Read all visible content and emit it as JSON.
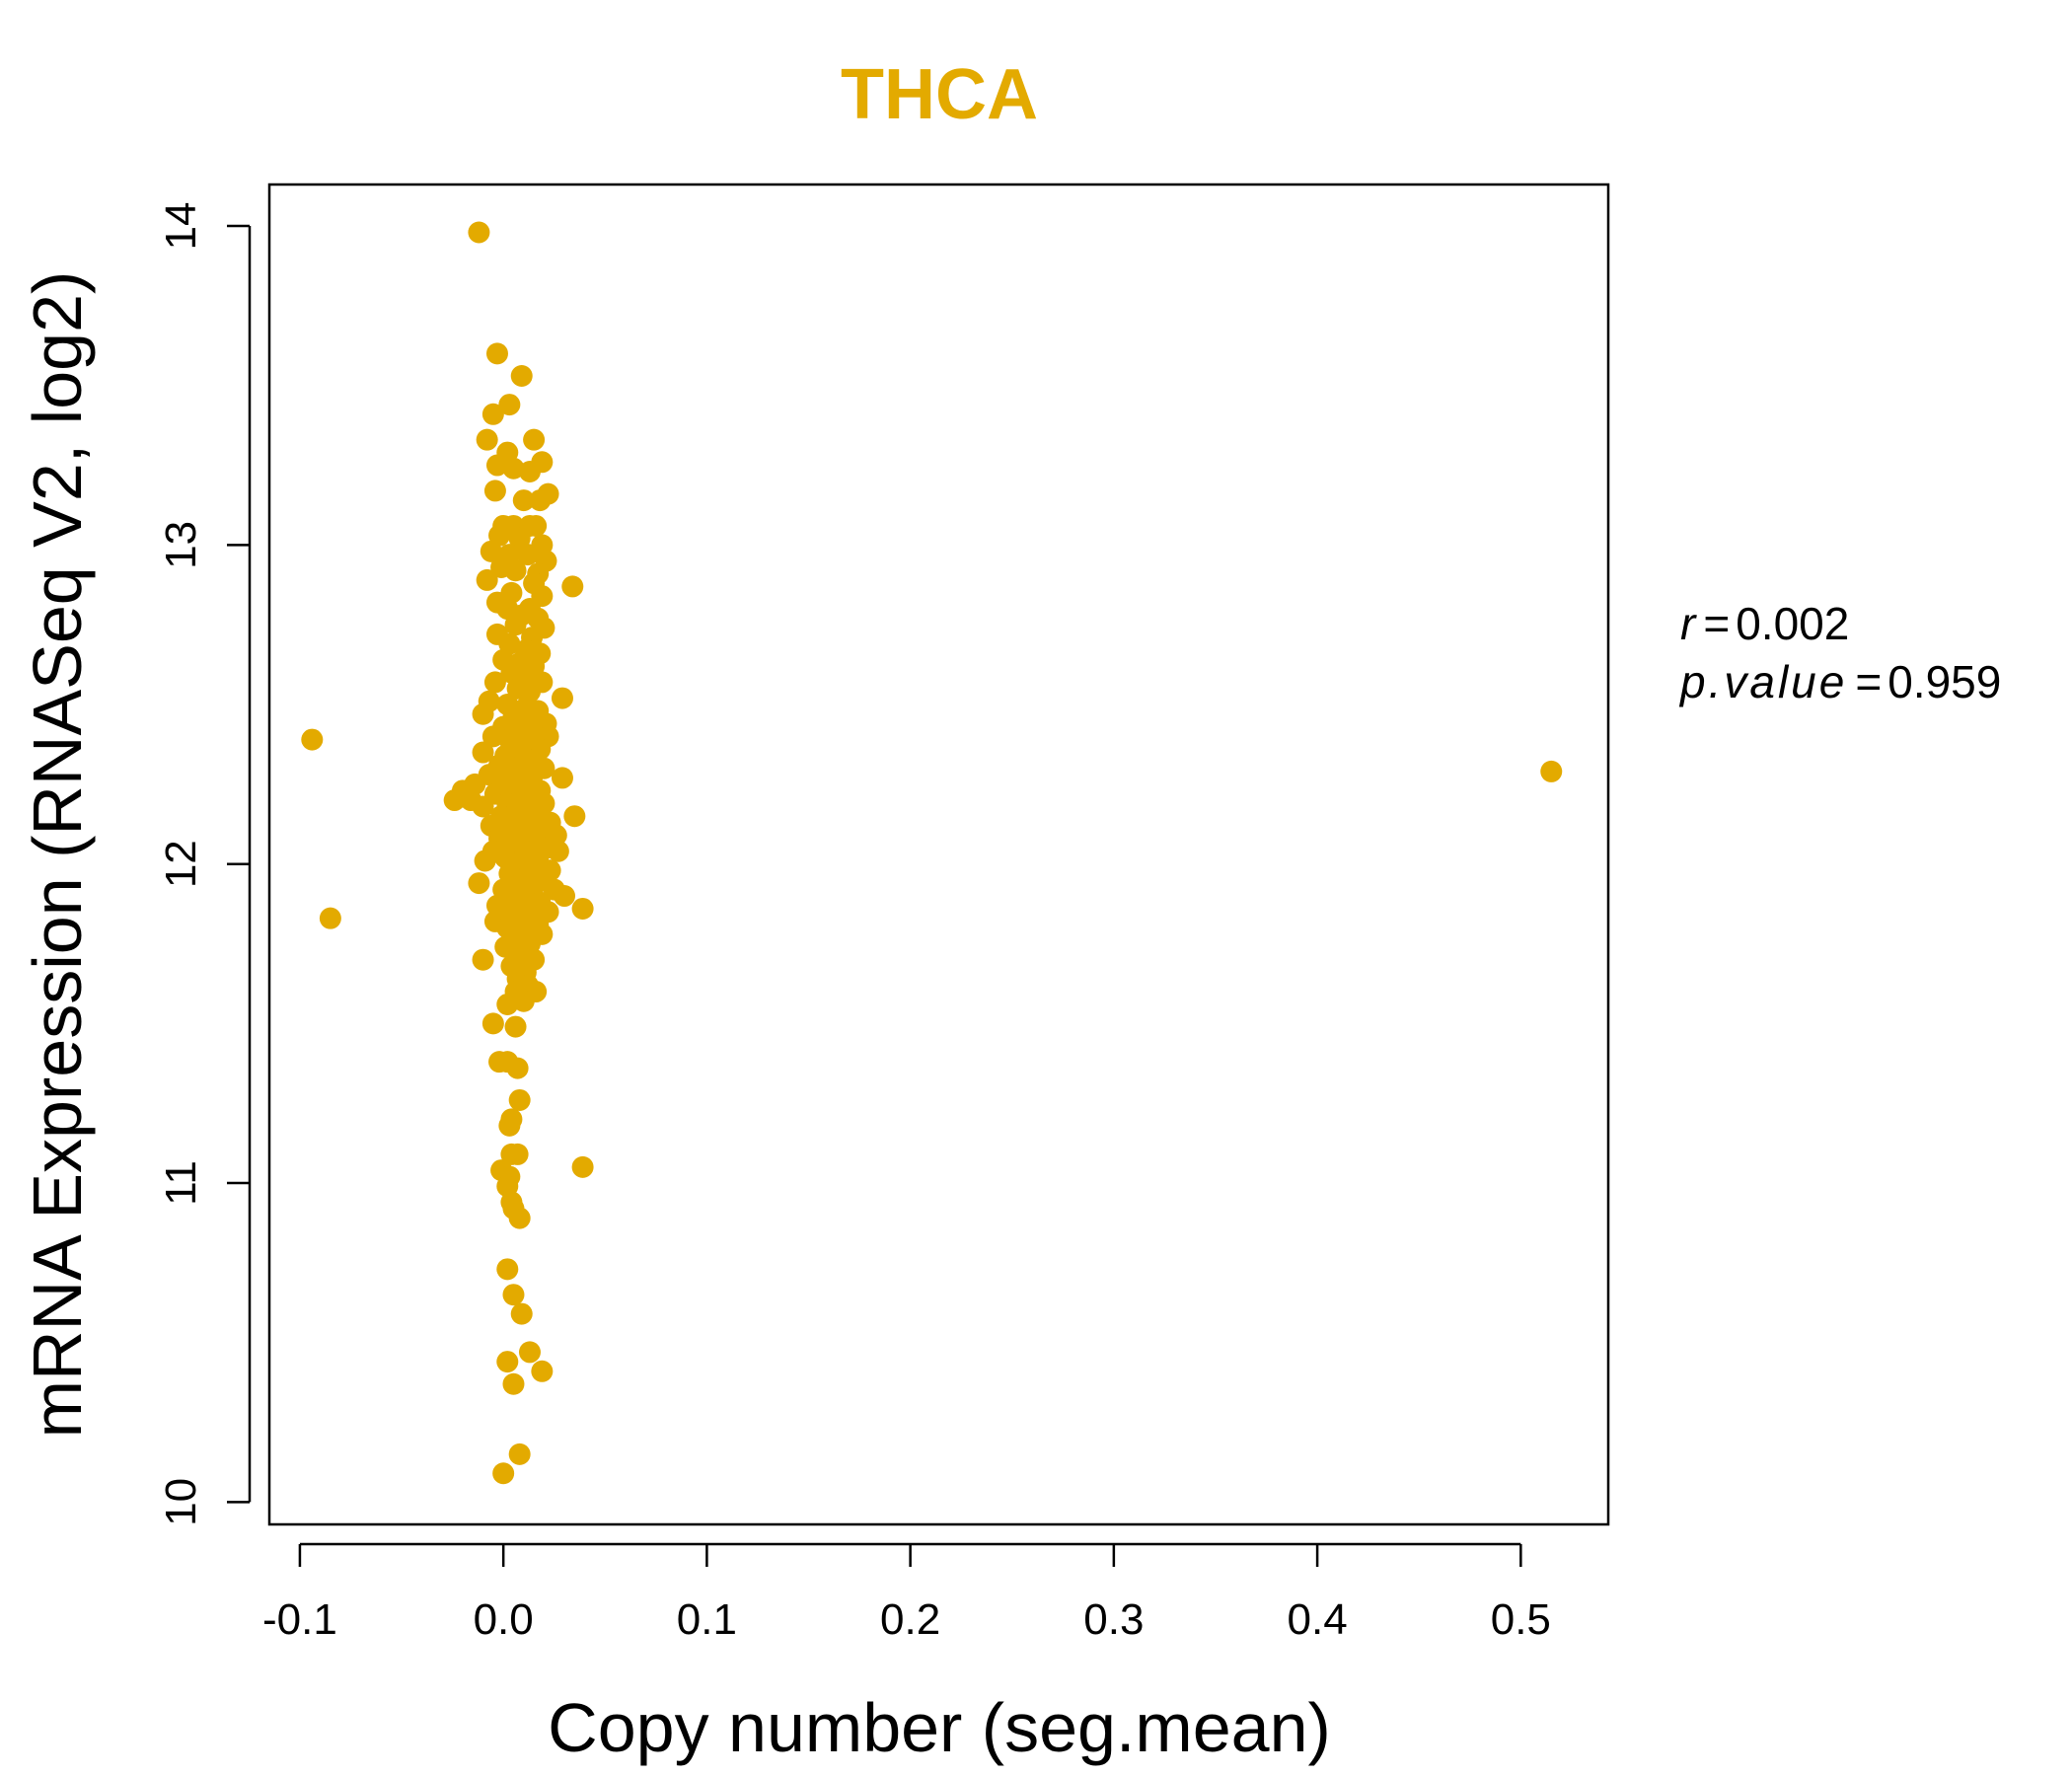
{
  "chart_data": {
    "type": "scatter",
    "title": "THCA",
    "xlabel": "Copy number (seg.mean)",
    "ylabel": "mRNA Expression (RNASeq V2, log2)",
    "xlim": [
      -0.115,
      0.543
    ],
    "ylim": [
      9.93,
      14.13
    ],
    "xticks": [
      "-0.1",
      "0.0",
      "0.1",
      "0.2",
      "0.3",
      "0.4",
      "0.5"
    ],
    "yticks": [
      "10",
      "11",
      "12",
      "13",
      "14"
    ],
    "color": "#E3AA00",
    "grid": false,
    "legend": "none",
    "stats": {
      "r_label": "r",
      "r_value": "0.002",
      "p_label": "p.value",
      "p_value": "0.959"
    },
    "points": [
      [
        -0.012,
        13.98
      ],
      [
        -0.003,
        13.6
      ],
      [
        0.009,
        13.53
      ],
      [
        0.003,
        13.44
      ],
      [
        -0.005,
        13.41
      ],
      [
        -0.008,
        13.33
      ],
      [
        0.015,
        13.33
      ],
      [
        0.002,
        13.29
      ],
      [
        -0.003,
        13.25
      ],
      [
        0.019,
        13.26
      ],
      [
        0.005,
        13.24
      ],
      [
        0.013,
        13.23
      ],
      [
        -0.004,
        13.17
      ],
      [
        0.022,
        13.16
      ],
      [
        0.01,
        13.14
      ],
      [
        0.018,
        13.14
      ],
      [
        0.0,
        13.06
      ],
      [
        0.005,
        13.06
      ],
      [
        0.013,
        13.06
      ],
      [
        0.016,
        13.06
      ],
      [
        -0.002,
        13.03
      ],
      [
        0.008,
        13.02
      ],
      [
        0.019,
        13.0
      ],
      [
        -0.006,
        12.98
      ],
      [
        0.003,
        12.97
      ],
      [
        0.012,
        12.97
      ],
      [
        0.021,
        12.95
      ],
      [
        -0.001,
        12.93
      ],
      [
        0.006,
        12.92
      ],
      [
        0.017,
        12.91
      ],
      [
        -0.008,
        12.89
      ],
      [
        0.015,
        12.88
      ],
      [
        0.034,
        12.87
      ],
      [
        0.004,
        12.85
      ],
      [
        0.019,
        12.84
      ],
      [
        -0.003,
        12.82
      ],
      [
        0.002,
        12.8
      ],
      [
        0.013,
        12.8
      ],
      [
        0.009,
        12.78
      ],
      [
        0.017,
        12.77
      ],
      [
        0.006,
        12.75
      ],
      [
        0.02,
        12.74
      ],
      [
        -0.003,
        12.72
      ],
      [
        0.014,
        12.71
      ],
      [
        0.003,
        12.69
      ],
      [
        0.011,
        12.67
      ],
      [
        0.018,
        12.66
      ],
      [
        0.0,
        12.64
      ],
      [
        0.008,
        12.63
      ],
      [
        0.015,
        12.62
      ],
      [
        0.004,
        12.6
      ],
      [
        0.01,
        12.58
      ],
      [
        -0.004,
        12.57
      ],
      [
        0.019,
        12.57
      ],
      [
        0.007,
        12.55
      ],
      [
        0.013,
        12.54
      ],
      [
        0.029,
        12.52
      ],
      [
        -0.007,
        12.51
      ],
      [
        0.002,
        12.5
      ],
      [
        0.011,
        12.49
      ],
      [
        0.017,
        12.48
      ],
      [
        -0.01,
        12.47
      ],
      [
        0.005,
        12.46
      ],
      [
        0.014,
        12.45
      ],
      [
        0.021,
        12.44
      ],
      [
        0.0,
        12.43
      ],
      [
        0.009,
        12.42
      ],
      [
        0.016,
        12.41
      ],
      [
        -0.005,
        12.4
      ],
      [
        0.003,
        12.39
      ],
      [
        0.012,
        12.38
      ],
      [
        0.022,
        12.4
      ],
      [
        -0.094,
        12.39
      ],
      [
        0.007,
        12.37
      ],
      [
        0.018,
        12.36
      ],
      [
        -0.01,
        12.35
      ],
      [
        0.001,
        12.34
      ],
      [
        0.011,
        12.33
      ],
      [
        0.015,
        12.32
      ],
      [
        -0.002,
        12.31
      ],
      [
        0.006,
        12.3
      ],
      [
        0.02,
        12.3
      ],
      [
        0.009,
        12.29
      ],
      [
        0.515,
        12.29
      ],
      [
        -0.007,
        12.28
      ],
      [
        0.004,
        12.27
      ],
      [
        0.014,
        12.27
      ],
      [
        0.029,
        12.27
      ],
      [
        -0.014,
        12.25
      ],
      [
        0.001,
        12.25
      ],
      [
        0.01,
        12.24
      ],
      [
        0.018,
        12.23
      ],
      [
        -0.02,
        12.23
      ],
      [
        -0.004,
        12.22
      ],
      [
        0.007,
        12.22
      ],
      [
        0.013,
        12.21
      ],
      [
        -0.024,
        12.2
      ],
      [
        -0.016,
        12.2
      ],
      [
        0.002,
        12.19
      ],
      [
        0.02,
        12.19
      ],
      [
        -0.01,
        12.18
      ],
      [
        0.009,
        12.17
      ],
      [
        0.016,
        12.16
      ],
      [
        -0.001,
        12.15
      ],
      [
        0.005,
        12.14
      ],
      [
        0.035,
        12.15
      ],
      [
        0.012,
        12.13
      ],
      [
        0.023,
        12.13
      ],
      [
        -0.006,
        12.12
      ],
      [
        0.003,
        12.11
      ],
      [
        0.018,
        12.1
      ],
      [
        0.008,
        12.09
      ],
      [
        0.026,
        12.09
      ],
      [
        -0.002,
        12.08
      ],
      [
        0.014,
        12.07
      ],
      [
        0.005,
        12.06
      ],
      [
        0.021,
        12.05
      ],
      [
        -0.005,
        12.04
      ],
      [
        0.011,
        12.04
      ],
      [
        0.027,
        12.04
      ],
      [
        0.001,
        12.02
      ],
      [
        0.017,
        12.02
      ],
      [
        -0.009,
        12.01
      ],
      [
        0.007,
        12.0
      ],
      [
        0.013,
        11.99
      ],
      [
        0.023,
        11.98
      ],
      [
        0.003,
        11.97
      ],
      [
        0.019,
        11.96
      ],
      [
        -0.012,
        11.94
      ],
      [
        0.009,
        11.94
      ],
      [
        0.015,
        11.93
      ],
      [
        0.0,
        11.92
      ],
      [
        0.025,
        11.92
      ],
      [
        0.006,
        11.91
      ],
      [
        0.03,
        11.9
      ],
      [
        0.012,
        11.89
      ],
      [
        0.018,
        11.88
      ],
      [
        -0.003,
        11.87
      ],
      [
        0.004,
        11.86
      ],
      [
        0.039,
        11.86
      ],
      [
        0.014,
        11.85
      ],
      [
        0.022,
        11.85
      ],
      [
        0.009,
        11.84
      ],
      [
        -0.085,
        11.83
      ],
      [
        -0.004,
        11.82
      ],
      [
        0.017,
        11.81
      ],
      [
        0.002,
        11.8
      ],
      [
        0.011,
        11.79
      ],
      [
        0.019,
        11.78
      ],
      [
        0.006,
        11.76
      ],
      [
        0.013,
        11.75
      ],
      [
        0.001,
        11.74
      ],
      [
        0.009,
        11.72
      ],
      [
        -0.01,
        11.7
      ],
      [
        0.015,
        11.7
      ],
      [
        0.004,
        11.68
      ],
      [
        0.011,
        11.66
      ],
      [
        0.007,
        11.64
      ],
      [
        0.012,
        11.62
      ],
      [
        0.016,
        11.6
      ],
      [
        0.006,
        11.6
      ],
      [
        0.002,
        11.56
      ],
      [
        0.01,
        11.57
      ],
      [
        -0.005,
        11.5
      ],
      [
        0.006,
        11.49
      ],
      [
        -0.002,
        11.38
      ],
      [
        0.002,
        11.38
      ],
      [
        0.007,
        11.36
      ],
      [
        0.008,
        11.26
      ],
      [
        0.004,
        11.2
      ],
      [
        0.003,
        11.18
      ],
      [
        0.004,
        11.09
      ],
      [
        0.007,
        11.09
      ],
      [
        0.039,
        11.05
      ],
      [
        -0.001,
        11.04
      ],
      [
        0.003,
        11.02
      ],
      [
        0.002,
        10.99
      ],
      [
        0.004,
        10.94
      ],
      [
        0.005,
        10.92
      ],
      [
        0.008,
        10.89
      ],
      [
        0.002,
        10.73
      ],
      [
        0.005,
        10.65
      ],
      [
        0.009,
        10.59
      ],
      [
        0.013,
        10.47
      ],
      [
        0.002,
        10.44
      ],
      [
        0.019,
        10.41
      ],
      [
        0.005,
        10.37
      ],
      [
        0.008,
        10.15
      ],
      [
        0.0,
        10.09
      ]
    ]
  }
}
